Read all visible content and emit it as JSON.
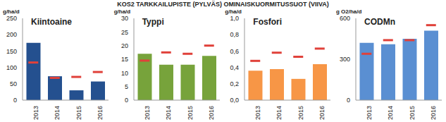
{
  "title": "KOS2 TARKKAILUPISTE (PYLVÄS) OMINAISKUORMITUSSUOT (VIIVA)",
  "chart_data": [
    {
      "type": "bar",
      "title": "Kiintoaine",
      "y_label": "g/ha/d",
      "categories": [
        "2013",
        "2014",
        "2015",
        "2016"
      ],
      "series": [
        {
          "type": "bar",
          "color": "#24508f",
          "values": [
            175,
            73,
            30,
            57
          ]
        },
        {
          "type": "scatter",
          "marker": "dash",
          "color": "#e0413a",
          "values": [
            115,
            68,
            71,
            86
          ]
        }
      ],
      "ylim": [
        0,
        250
      ],
      "yticks": [
        0,
        50,
        100,
        150,
        200,
        250
      ],
      "grid": false
    },
    {
      "type": "bar",
      "title": "Typpi",
      "y_label": "g/ha/d",
      "categories": [
        "2013",
        "2014",
        "2015",
        "2016"
      ],
      "series": [
        {
          "type": "bar",
          "color": "#77a33b",
          "values": [
            17,
            13,
            13,
            16.2
          ]
        },
        {
          "type": "scatter",
          "marker": "dash",
          "color": "#e0413a",
          "values": [
            14.5,
            17.5,
            17,
            20
          ]
        }
      ],
      "ylim": [
        0,
        30
      ],
      "yticks": [
        0,
        5,
        10,
        15,
        20,
        25,
        30
      ],
      "grid": false
    },
    {
      "type": "bar",
      "title": "Fosfori",
      "y_label": "g/ha/d",
      "categories": [
        "2013",
        "2014",
        "2015",
        "2016"
      ],
      "series": [
        {
          "type": "bar",
          "color": "#f79646",
          "values": [
            0.36,
            0.38,
            0.26,
            0.44
          ]
        },
        {
          "type": "scatter",
          "marker": "dash",
          "color": "#e0413a",
          "values": [
            0.48,
            0.58,
            0.53,
            0.63
          ]
        }
      ],
      "ylim": [
        0,
        1.0
      ],
      "yticks": [
        {
          "value": 0,
          "label": "0,0"
        },
        {
          "value": 0.2,
          "label": "0,2"
        },
        {
          "value": 0.4,
          "label": "0,4"
        },
        {
          "value": 0.6,
          "label": "0,6"
        },
        {
          "value": 0.8,
          "label": "0,8"
        },
        {
          "value": 1.0,
          "label": "1,0"
        }
      ],
      "grid": false
    },
    {
      "type": "bar",
      "title": "CODMn",
      "y_label": "g O2/ha/d",
      "categories": [
        "2013",
        "2014",
        "2015",
        "2016"
      ],
      "series": [
        {
          "type": "bar",
          "color": "#5a8fd2",
          "values": [
            420,
            410,
            450,
            510
          ]
        },
        {
          "type": "scatter",
          "marker": "dash",
          "color": "#e0413a",
          "values": [
            340,
            440,
            440,
            550
          ]
        }
      ],
      "ylim": [
        0,
        600
      ],
      "yticks": [
        0,
        300,
        600
      ],
      "grid": false
    }
  ]
}
